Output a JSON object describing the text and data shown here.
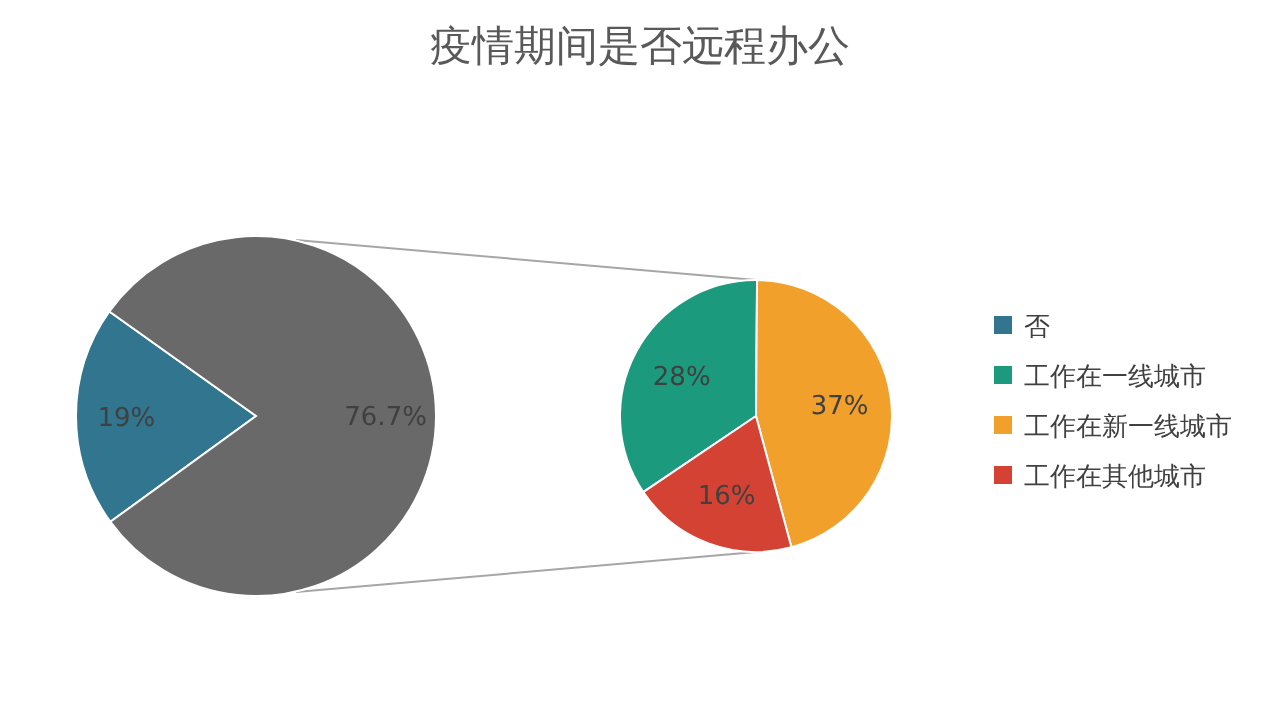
{
  "chart_data": [
    {
      "type": "pie",
      "title": "疫情期间是否远程办公",
      "categories": [
        "否",
        null
      ],
      "values": [
        19,
        76.7
      ],
      "colors": [
        "#31758f",
        "#696969"
      ],
      "value_labels": [
        "19%",
        "76.7%"
      ],
      "legend": "right"
    },
    {
      "type": "pie",
      "categories": [
        "工作在一线城市",
        "工作在新一线城市",
        "工作在其他城市"
      ],
      "values": [
        28,
        37,
        16
      ],
      "colors": [
        "#1b9a7e",
        "#f0a02b",
        "#d44233"
      ],
      "value_labels": [
        "28%",
        "37%",
        "16%"
      ],
      "legend": "right"
    }
  ]
}
